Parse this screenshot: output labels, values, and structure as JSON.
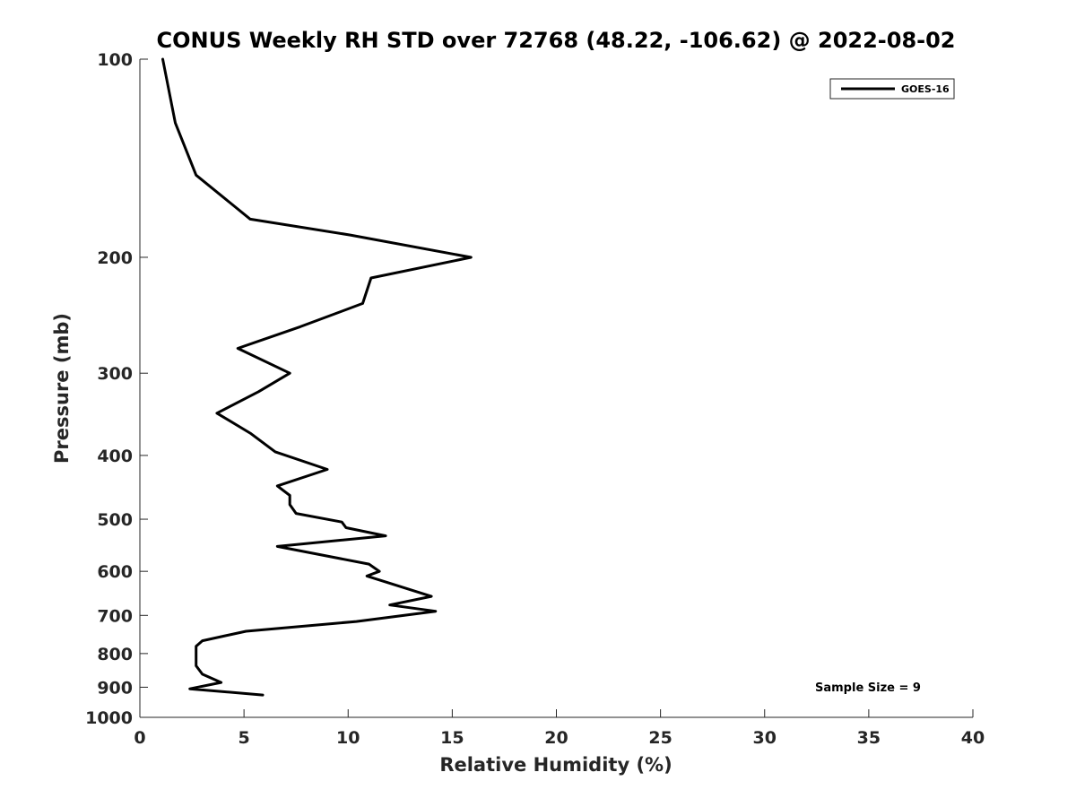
{
  "chart_data": {
    "type": "line",
    "title": "CONUS Weekly RH STD over 72768 (48.22, -106.62) @ 2022-08-02",
    "xlabel": "Relative Humidity (%)",
    "ylabel": "Pressure (mb)",
    "xlim": [
      0,
      40
    ],
    "ylim": [
      100,
      1000
    ],
    "y_scale": "log",
    "y_reversed": true,
    "x_ticks": [
      "0",
      "5",
      "10",
      "15",
      "20",
      "25",
      "30",
      "35",
      "40"
    ],
    "y_ticks": [
      "100",
      "200",
      "300",
      "400",
      "500",
      "600",
      "700",
      "800",
      "900",
      "1000"
    ],
    "grid": false,
    "legend_position": "top-right",
    "annotation": "Sample Size = 9",
    "series": [
      {
        "name": "GOES-16",
        "color": "#000000",
        "x": [
          1.1,
          1.7,
          2.7,
          5.3,
          10.1,
          15.9,
          11.1,
          10.7,
          7.7,
          4.7,
          7.2,
          5.7,
          3.7,
          5.3,
          6.5,
          9.0,
          6.6,
          7.2,
          7.2,
          7.5,
          9.7,
          9.9,
          11.8,
          6.6,
          11.0,
          11.5,
          10.9,
          14.0,
          12.0,
          14.2,
          10.4,
          5.1,
          3.0,
          2.7,
          2.7,
          2.7,
          3.0,
          3.9,
          2.4,
          5.9
        ],
        "y": [
          100,
          125,
          150,
          175,
          185,
          200,
          215,
          235,
          255,
          275,
          300,
          320,
          345,
          370,
          395,
          420,
          445,
          460,
          475,
          490,
          505,
          515,
          530,
          550,
          585,
          600,
          610,
          655,
          675,
          690,
          715,
          740,
          765,
          780,
          810,
          835,
          860,
          885,
          905,
          925
        ]
      }
    ]
  }
}
